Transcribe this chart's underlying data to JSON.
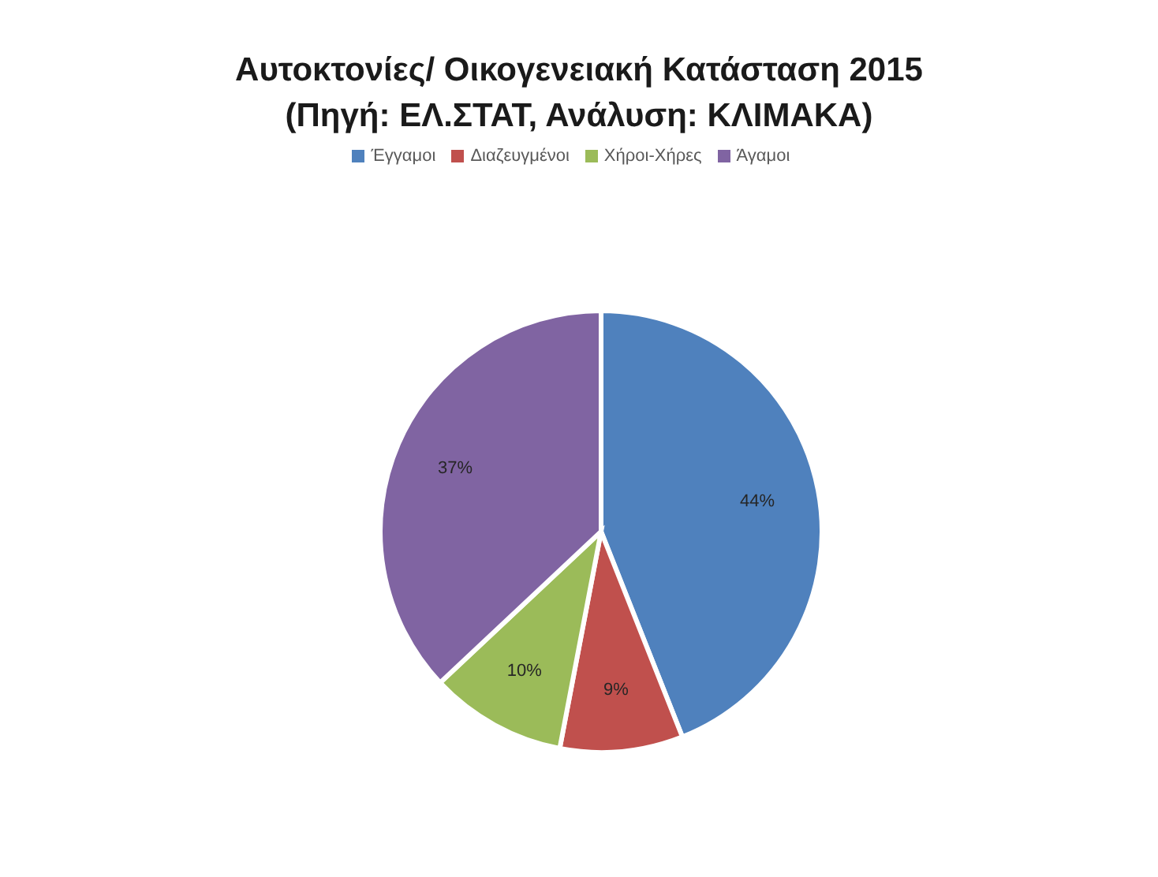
{
  "chart_data": {
    "type": "pie",
    "title": "Αυτοκτονίες/ Οικογενειακή Κατάσταση 2015",
    "subtitle": "(Πηγή: ΕΛ.ΣΤΑΤ, Ανάλυση: ΚΛΙΜΑΚΑ)",
    "categories": [
      "Έγγαμοι",
      "Διαζευγμένοι",
      "Χήροι-Χήρες",
      "Άγαμοι"
    ],
    "values": [
      44,
      9,
      10,
      37
    ],
    "value_labels": [
      "44%",
      "9%",
      "10%",
      "37%"
    ],
    "colors": [
      "#4f81bd",
      "#c0504d",
      "#9bbb59",
      "#8064a2"
    ],
    "legend": "top"
  }
}
